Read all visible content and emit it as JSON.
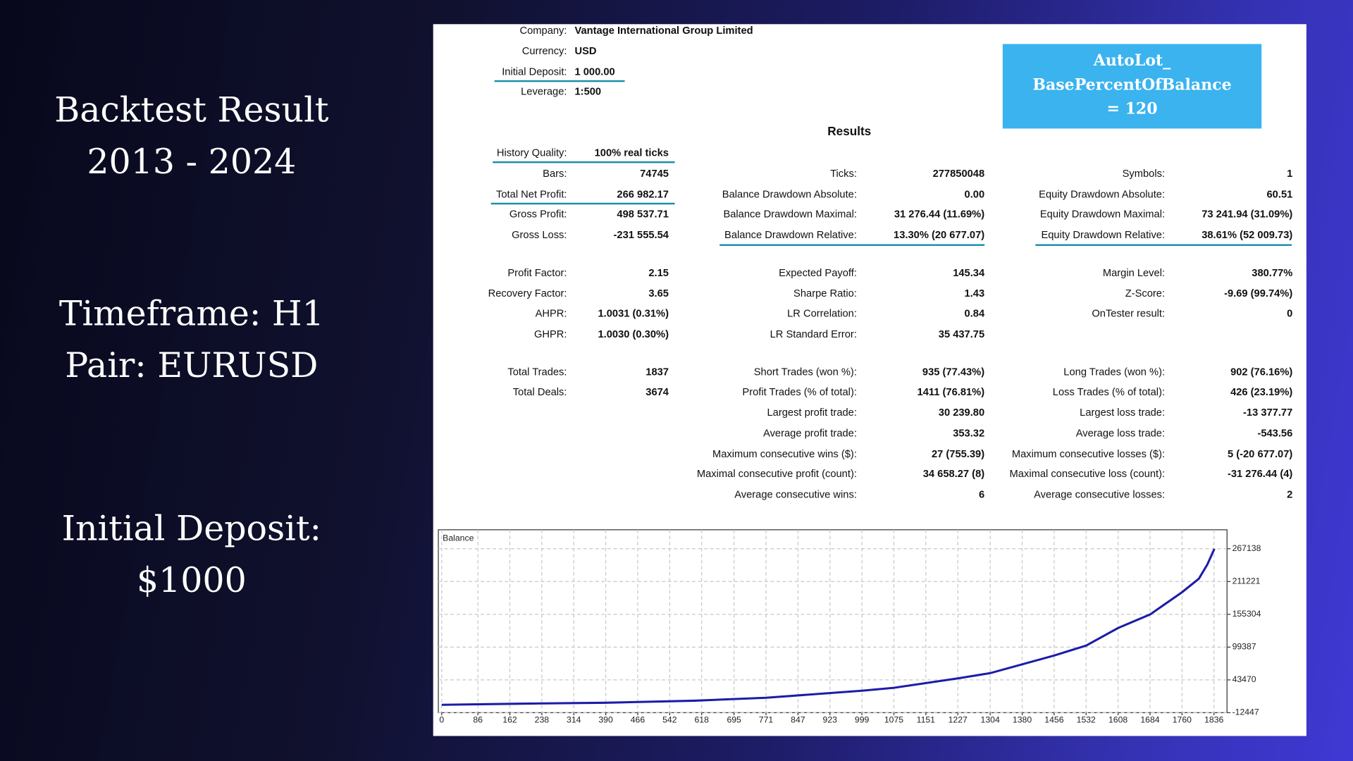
{
  "slide": {
    "heading": [
      "Backtest Result",
      "2013 - 2024"
    ],
    "details": [
      "Timeframe: H1",
      "Pair: EURUSD"
    ],
    "deposit": [
      "Initial Deposit:",
      "$1000"
    ]
  },
  "header": {
    "fields": [
      {
        "label": "Company:",
        "value": "Vantage International Group Limited"
      },
      {
        "label": "Currency:",
        "value": "USD"
      },
      {
        "label": "Initial Deposit:",
        "value": "1 000.00"
      },
      {
        "label": "Leverage:",
        "value": "1:500"
      }
    ]
  },
  "callout": {
    "lines": [
      "AutoLot_",
      "BasePercentOfBalance",
      "= 120"
    ]
  },
  "results": {
    "title": "Results",
    "rows": [
      [
        {
          "label": "History Quality:",
          "value": "100% real ticks"
        },
        null,
        null
      ],
      [
        {
          "label": "Bars:",
          "value": "74745"
        },
        {
          "label": "Ticks:",
          "value": "277850048"
        },
        {
          "label": "Symbols:",
          "value": "1"
        }
      ],
      [
        {
          "label": "Total Net Profit:",
          "value": "266 982.17"
        },
        {
          "label": "Balance Drawdown Absolute:",
          "value": "0.00"
        },
        {
          "label": "Equity Drawdown Absolute:",
          "value": "60.51"
        }
      ],
      [
        {
          "label": "Gross Profit:",
          "value": "498 537.71"
        },
        {
          "label": "Balance Drawdown Maximal:",
          "value": "31 276.44 (11.69%)"
        },
        {
          "label": "Equity Drawdown Maximal:",
          "value": "73 241.94 (31.09%)"
        }
      ],
      [
        {
          "label": "Gross Loss:",
          "value": "-231 555.54"
        },
        {
          "label": "Balance Drawdown Relative:",
          "value": "13.30% (20 677.07)"
        },
        {
          "label": "Equity Drawdown Relative:",
          "value": "38.61% (52 009.73)"
        }
      ],
      [
        {
          "label": "Profit Factor:",
          "value": "2.15"
        },
        {
          "label": "Expected Payoff:",
          "value": "145.34"
        },
        {
          "label": "Margin Level:",
          "value": "380.77%"
        }
      ],
      [
        {
          "label": "Recovery Factor:",
          "value": "3.65"
        },
        {
          "label": "Sharpe Ratio:",
          "value": "1.43"
        },
        {
          "label": "Z-Score:",
          "value": "-9.69 (99.74%)"
        }
      ],
      [
        {
          "label": "AHPR:",
          "value": "1.0031 (0.31%)"
        },
        {
          "label": "LR Correlation:",
          "value": "0.84"
        },
        {
          "label": "OnTester result:",
          "value": "0"
        }
      ],
      [
        {
          "label": "GHPR:",
          "value": "1.0030 (0.30%)"
        },
        {
          "label": "LR Standard Error:",
          "value": "35 437.75"
        },
        null
      ],
      [
        {
          "label": "Total Trades:",
          "value": "1837"
        },
        {
          "label": "Short Trades (won %):",
          "value": "935 (77.43%)"
        },
        {
          "label": "Long Trades (won %):",
          "value": "902 (76.16%)"
        }
      ],
      [
        {
          "label": "Total Deals:",
          "value": "3674"
        },
        {
          "label": "Profit Trades (% of total):",
          "value": "1411 (76.81%)"
        },
        {
          "label": "Loss Trades (% of total):",
          "value": "426 (23.19%)"
        }
      ],
      [
        null,
        {
          "label": "Largest profit trade:",
          "value": "30 239.80"
        },
        {
          "label": "Largest loss trade:",
          "value": "-13 377.77"
        }
      ],
      [
        null,
        {
          "label": "Average profit trade:",
          "value": "353.32"
        },
        {
          "label": "Average loss trade:",
          "value": "-543.56"
        }
      ],
      [
        null,
        {
          "label": "Maximum consecutive wins ($):",
          "value": "27 (755.39)"
        },
        {
          "label": "Maximum consecutive losses ($):",
          "value": "5 (-20 677.07)"
        }
      ],
      [
        null,
        {
          "label": "Maximal consecutive profit (count):",
          "value": "34 658.27 (8)"
        },
        {
          "label": "Maximal consecutive loss (count):",
          "value": "-31 276.44 (4)"
        }
      ],
      [
        null,
        {
          "label": "Average consecutive wins:",
          "value": "6"
        },
        {
          "label": "Average consecutive losses:",
          "value": "2"
        }
      ]
    ]
  },
  "chart_data": {
    "type": "line",
    "title": "Balance",
    "x": [
      0,
      200,
      390,
      600,
      771,
      999,
      1075,
      1227,
      1304,
      1380,
      1456,
      1532,
      1608,
      1684,
      1760,
      1800,
      1820,
      1837
    ],
    "series": [
      {
        "name": "Balance",
        "color": "#1c1ca8",
        "values": [
          1000,
          3000,
          4500,
          8000,
          13000,
          25000,
          30000,
          46000,
          55000,
          70000,
          85000,
          102000,
          132000,
          155000,
          193000,
          216000,
          240000,
          267000
        ]
      }
    ],
    "xlim": [
      -8,
      1867
    ],
    "ylim": [
      -12447,
      299500
    ],
    "xticks": [
      0,
      86,
      162,
      238,
      314,
      390,
      466,
      542,
      618,
      695,
      771,
      847,
      923,
      999,
      1075,
      1151,
      1227,
      1304,
      1380,
      1456,
      1532,
      1608,
      1684,
      1760,
      1836
    ],
    "yticks": [
      -12447,
      43470,
      99387,
      155304,
      211221,
      267138
    ],
    "grid": true
  }
}
